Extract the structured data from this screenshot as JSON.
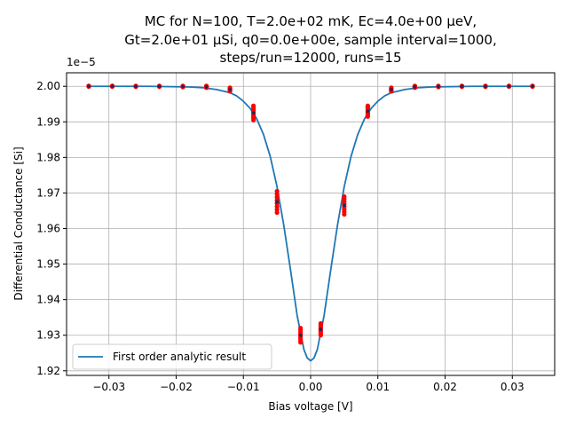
{
  "chart_data": {
    "type": "scatter",
    "title_lines": [
      "MC for N=100, T=2.0e+02 mK, Ec=4.0e+00 μeV,",
      "Gt=2.0e+01 μSi, q0=0.0e+00e, sample interval=1000,",
      "steps/run=12000, runs=15"
    ],
    "xlabel": "Bias voltage [V]",
    "ylabel": "Differential Conductance [Si]",
    "y_offset_label": "1e−5",
    "xlim": [
      -0.0363,
      0.0363
    ],
    "ylim": [
      1.9187,
      2.0038
    ],
    "x_ticks": [
      -0.03,
      -0.02,
      -0.01,
      0.0,
      0.01,
      0.02,
      0.03
    ],
    "x_tick_labels": [
      "−0.03",
      "−0.02",
      "−0.01",
      "0.00",
      "0.01",
      "0.02",
      "0.03"
    ],
    "y_ticks": [
      1.92,
      1.93,
      1.94,
      1.95,
      1.96,
      1.97,
      1.98,
      1.99,
      2.0
    ],
    "y_tick_labels": [
      "1.92",
      "1.93",
      "1.94",
      "1.95",
      "1.96",
      "1.97",
      "1.98",
      "1.99",
      "2.00"
    ],
    "grid": true,
    "legend_position": "lower-left",
    "colors": {
      "line": "#1f77b4",
      "points_outer": "#ff0000",
      "points_inner": "#1c2a57",
      "grid": "#b0b0b0"
    },
    "series": [
      {
        "name": "First order analytic result",
        "kind": "line",
        "x": [
          -0.033,
          -0.03,
          -0.027,
          -0.024,
          -0.021,
          -0.018,
          -0.016,
          -0.014,
          -0.012,
          -0.011,
          -0.01,
          -0.009,
          -0.008,
          -0.007,
          -0.006,
          -0.005,
          -0.004,
          -0.003,
          -0.002,
          -0.001,
          -0.0005,
          0.0,
          0.0005,
          0.001,
          0.002,
          0.003,
          0.004,
          0.005,
          0.006,
          0.007,
          0.008,
          0.009,
          0.01,
          0.011,
          0.012,
          0.014,
          0.016,
          0.018,
          0.021,
          0.024,
          0.027,
          0.03,
          0.033
        ],
        "y": [
          2.0,
          2.0,
          2.0,
          2.0,
          1.9999,
          1.9998,
          1.9996,
          1.9991,
          1.9982,
          1.9973,
          1.9958,
          1.9938,
          1.9908,
          1.9864,
          1.9802,
          1.9718,
          1.961,
          1.9485,
          1.9355,
          1.926,
          1.9236,
          1.9228,
          1.9236,
          1.926,
          1.9355,
          1.9485,
          1.961,
          1.9718,
          1.9802,
          1.9864,
          1.9908,
          1.9938,
          1.9958,
          1.9973,
          1.9982,
          1.9991,
          1.9996,
          1.9998,
          1.9999,
          2.0,
          2.0,
          2.0,
          2.0
        ]
      },
      {
        "name": "",
        "kind": "scatter",
        "points": [
          {
            "x": -0.033,
            "y_min": 1.99995,
            "y_max": 2.0001
          },
          {
            "x": -0.0295,
            "y_min": 1.99995,
            "y_max": 2.0001
          },
          {
            "x": -0.026,
            "y_min": 1.9999,
            "y_max": 2.0001
          },
          {
            "x": -0.0225,
            "y_min": 1.9999,
            "y_max": 2.0001
          },
          {
            "x": -0.019,
            "y_min": 1.9998,
            "y_max": 2.0001
          },
          {
            "x": -0.0155,
            "y_min": 1.9996,
            "y_max": 2.0001
          },
          {
            "x": -0.012,
            "y_min": 1.9986,
            "y_max": 1.9996
          },
          {
            "x": -0.0085,
            "y_min": 1.9905,
            "y_max": 1.9945
          },
          {
            "x": -0.005,
            "y_min": 1.9645,
            "y_max": 1.9705
          },
          {
            "x": -0.0015,
            "y_min": 1.928,
            "y_max": 1.932
          },
          {
            "x": 0.0015,
            "y_min": 1.93,
            "y_max": 1.9333
          },
          {
            "x": 0.005,
            "y_min": 1.964,
            "y_max": 1.969
          },
          {
            "x": 0.0085,
            "y_min": 1.9915,
            "y_max": 1.9945
          },
          {
            "x": 0.012,
            "y_min": 1.9986,
            "y_max": 1.9996
          },
          {
            "x": 0.0155,
            "y_min": 1.9996,
            "y_max": 2.0001
          },
          {
            "x": 0.019,
            "y_min": 1.9998,
            "y_max": 2.0001
          },
          {
            "x": 0.0225,
            "y_min": 1.9999,
            "y_max": 2.0001
          },
          {
            "x": 0.026,
            "y_min": 1.9999,
            "y_max": 2.0001
          },
          {
            "x": 0.0295,
            "y_min": 1.99995,
            "y_max": 2.0001
          },
          {
            "x": 0.033,
            "y_min": 1.99995,
            "y_max": 2.0001
          }
        ]
      }
    ]
  }
}
